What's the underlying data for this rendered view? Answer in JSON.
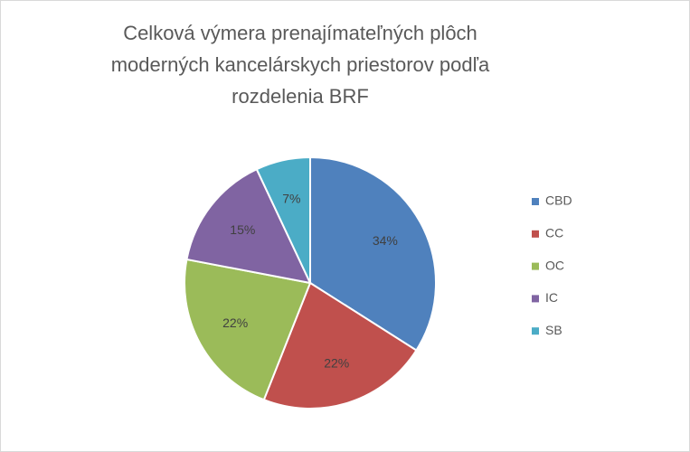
{
  "chart_data": {
    "type": "pie",
    "title": "Celková výmera prenajímateľných plôch moderných kancelárskych priestorov podľa rozdelenia BRF",
    "categories": [
      "CBD",
      "CC",
      "OC",
      "IC",
      "SB"
    ],
    "values": [
      34,
      22,
      22,
      15,
      7
    ],
    "value_labels": [
      "34%",
      "22%",
      "22%",
      "15%",
      "7%"
    ],
    "colors": [
      "#4f81bd",
      "#c0504d",
      "#9bbb59",
      "#8064a2",
      "#4bacc6"
    ],
    "legend": "right"
  }
}
